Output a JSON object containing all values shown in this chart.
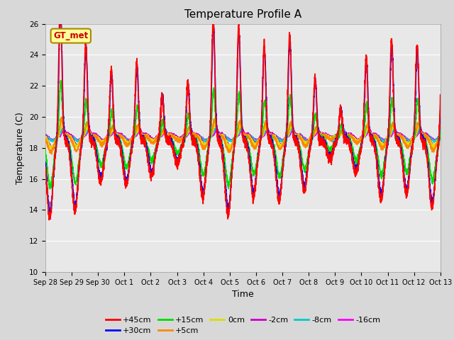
{
  "title": "Temperature Profile A",
  "xlabel": "Time",
  "ylabel": "Temperature (C)",
  "ylim": [
    10,
    26
  ],
  "annotation_text": "GT_met",
  "legend_entries": [
    {
      "label": "+45cm",
      "color": "#ff0000",
      "lw": 1.2
    },
    {
      "label": "+30cm",
      "color": "#0000ff",
      "lw": 1.2
    },
    {
      "label": "+15cm",
      "color": "#00dd00",
      "lw": 1.2
    },
    {
      "label": "+5cm",
      "color": "#ff8800",
      "lw": 1.2
    },
    {
      "label": "0cm",
      "color": "#dddd00",
      "lw": 1.2
    },
    {
      "label": "-2cm",
      "color": "#cc00cc",
      "lw": 1.2
    },
    {
      "label": "-8cm",
      "color": "#00cccc",
      "lw": 1.2
    },
    {
      "label": "-16cm",
      "color": "#ff00ff",
      "lw": 1.2
    }
  ],
  "xtick_labels": [
    "Sep 28",
    "Sep 29",
    "Sep 30",
    "Oct 1",
    "Oct 2",
    "Oct 3",
    "Oct 4",
    "Oct 5",
    "Oct 6",
    "Oct 7",
    "Oct 8",
    "Oct 9",
    "Oct 10",
    "Oct 11",
    "Oct 12",
    "Oct 13"
  ],
  "ytick_values": [
    10,
    12,
    14,
    16,
    18,
    20,
    22,
    24,
    26
  ],
  "bg_color": "#d8d8d8",
  "plot_bg_color": "#e8e8e8",
  "grid_color": "#ffffff",
  "annotation_bg": "#ffff99",
  "annotation_border": "#aa8800",
  "annotation_text_color": "#cc0000",
  "n_days": 15.5,
  "base_temp": 18.5,
  "figsize": [
    6.4,
    4.8
  ],
  "dpi": 100
}
